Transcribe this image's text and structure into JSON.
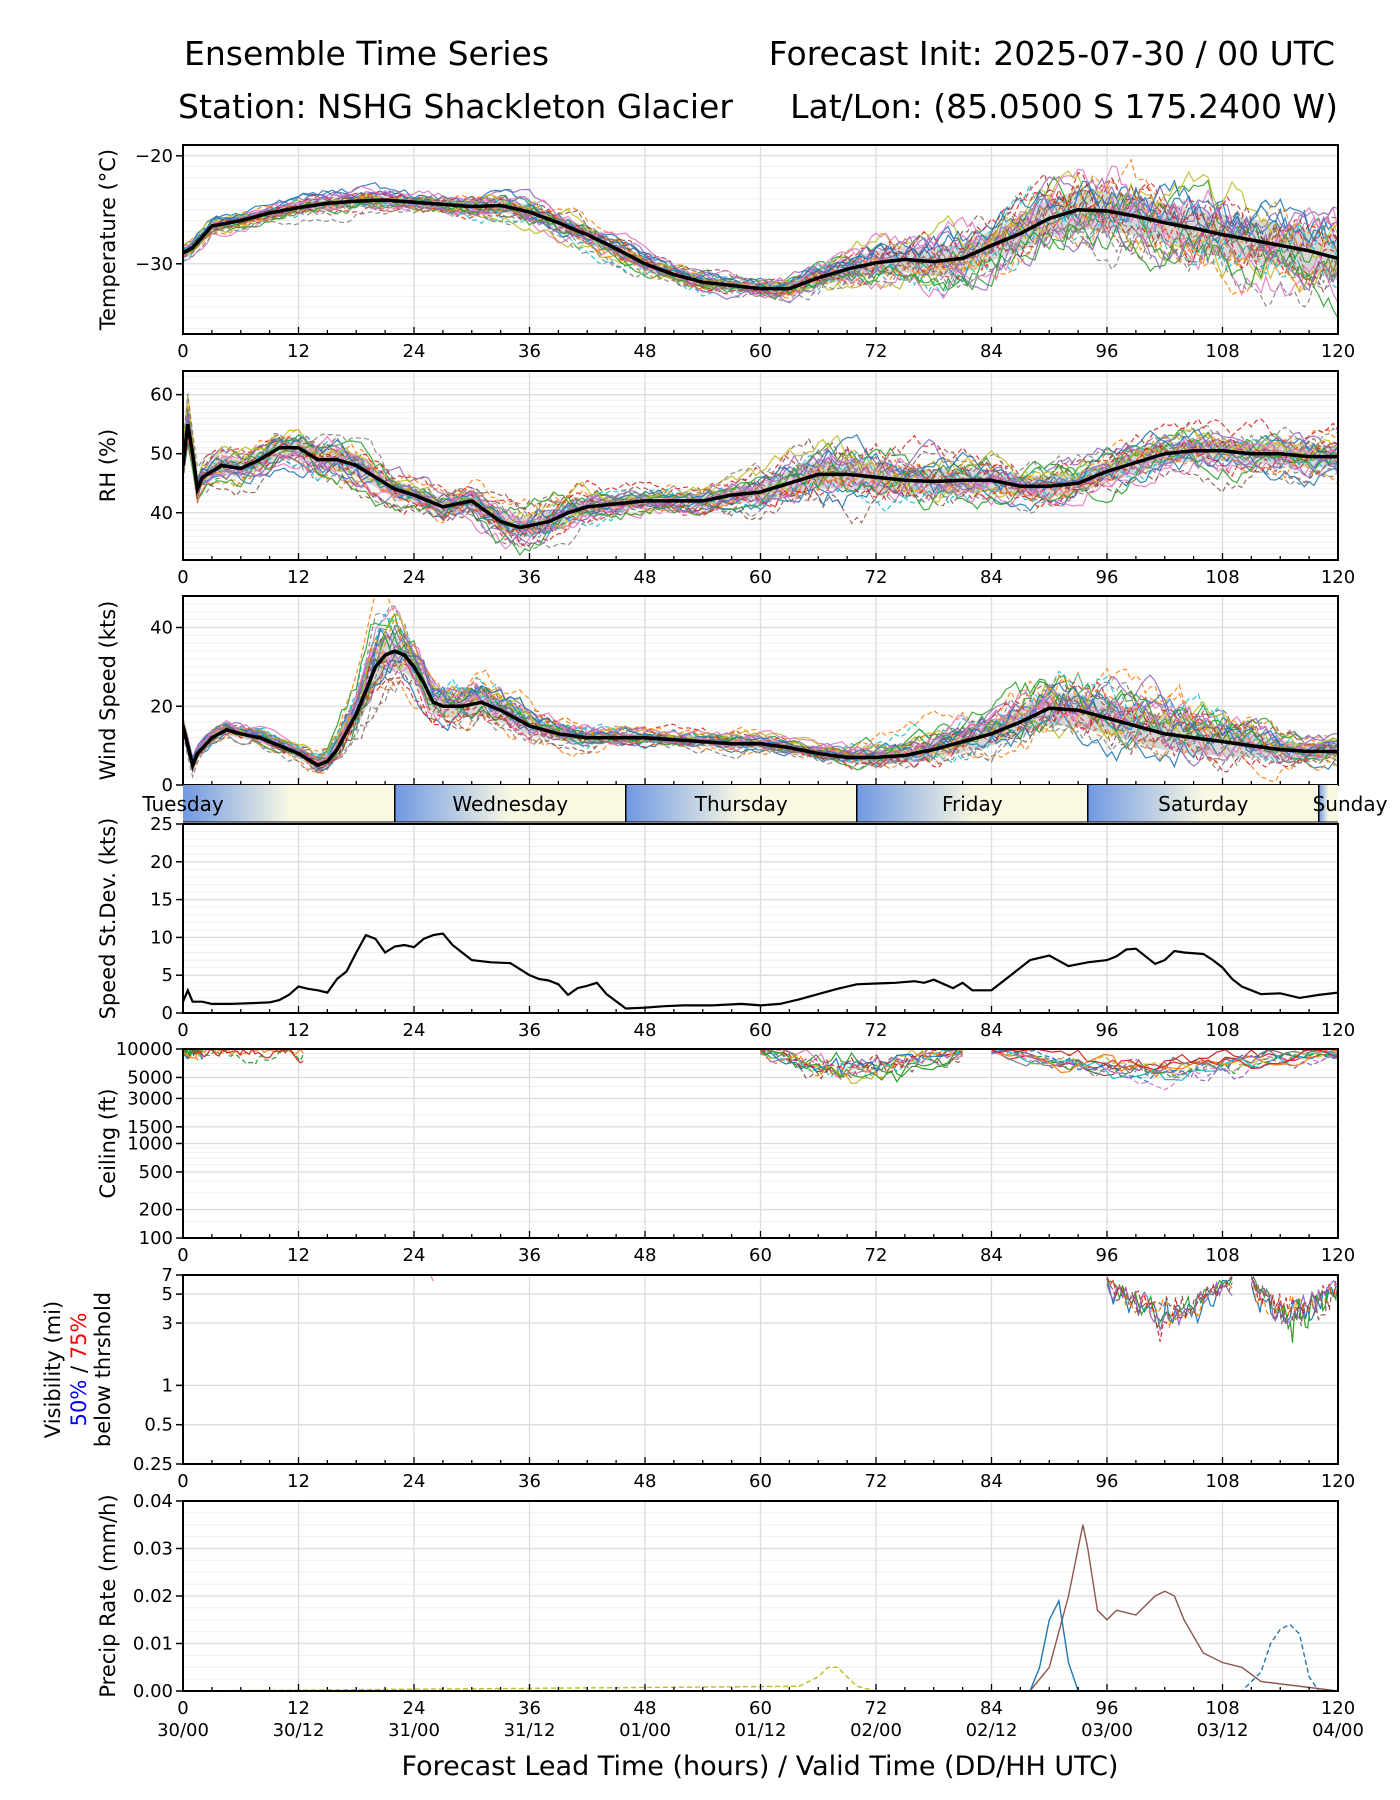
{
  "header": {
    "title_left": "Ensemble Time Series",
    "title_right": "Forecast Init: 2025-07-30 / 00 UTC",
    "station": "Station: NSHG Shackleton Glacier",
    "latlon": "Lat/Lon: (85.0500 S 175.2400 W)"
  },
  "chart_data": [
    {
      "type": "line",
      "ylabel": "Temperature (°C)",
      "ylim": [
        -36.5,
        -19
      ],
      "yticks": [
        -20,
        -30
      ],
      "ytick_labels": [
        "−20",
        "−30"
      ],
      "x_range": [
        0,
        120
      ],
      "mean_series": {
        "name": "ensemble mean",
        "x": [
          0,
          1,
          3,
          6,
          9,
          12,
          15,
          18,
          21,
          24,
          27,
          30,
          33,
          36,
          39,
          42,
          45,
          48,
          51,
          54,
          57,
          60,
          63,
          66,
          69,
          72,
          75,
          78,
          81,
          84,
          87,
          90,
          93,
          96,
          99,
          102,
          105,
          108,
          111,
          114,
          117,
          120
        ],
        "y": [
          -29,
          -28.5,
          -26.5,
          -26,
          -25.3,
          -24.8,
          -24.4,
          -24.2,
          -24.1,
          -24.3,
          -24.5,
          -24.7,
          -24.6,
          -25.2,
          -26.2,
          -27.3,
          -28.6,
          -30,
          -31,
          -31.7,
          -32,
          -32.3,
          -32.3,
          -31.3,
          -30.5,
          -29.9,
          -29.6,
          -29.8,
          -29.5,
          -28.3,
          -27.2,
          -25.8,
          -25,
          -25.1,
          -25.6,
          -26.2,
          -26.7,
          -27.3,
          -27.8,
          -28.3,
          -28.8,
          -29.5
        ]
      },
      "spread_ensemble": {
        "members": 28,
        "spread": [
          0.8,
          0.8,
          0.7,
          0.7,
          0.6,
          0.8,
          0.9,
          0.9,
          0.8,
          0.8,
          0.8,
          0.9,
          1.0,
          1.1,
          1.2,
          1.2,
          1.1,
          1.0,
          0.9,
          0.9,
          0.8,
          0.8,
          1.0,
          1.3,
          1.6,
          1.8,
          2.0,
          2.2,
          2.3,
          2.4,
          2.7,
          3.0,
          3.0,
          3.0,
          3.0,
          3.0,
          3.1,
          3.2,
          3.3,
          3.3,
          3.3,
          3.3
        ]
      }
    },
    {
      "type": "line",
      "ylabel": "RH (%)",
      "ylim": [
        32,
        64
      ],
      "yticks": [
        40,
        50,
        60
      ],
      "ytick_labels": [
        "40",
        "50",
        "60"
      ],
      "x_range": [
        0,
        120
      ],
      "mean_series": {
        "name": "ensemble mean",
        "x": [
          0,
          0.5,
          1,
          1.5,
          2,
          4,
          6,
          8,
          10,
          12,
          14,
          16,
          18,
          20,
          22,
          24,
          27,
          30,
          33,
          35,
          36,
          38,
          40,
          42,
          45,
          48,
          51,
          54,
          57,
          60,
          63,
          66,
          69,
          72,
          75,
          78,
          81,
          84,
          87,
          90,
          93,
          96,
          99,
          102,
          105,
          108,
          111,
          114,
          117,
          120
        ],
        "y": [
          48,
          55,
          50,
          44,
          46,
          48,
          47.5,
          49,
          51,
          51,
          49,
          49,
          48,
          46,
          44,
          43,
          41,
          42,
          38.5,
          37.5,
          37.8,
          38.5,
          40,
          41,
          41.5,
          42,
          42,
          42,
          43,
          43.5,
          45,
          46.5,
          46.5,
          46,
          45.5,
          45.3,
          45.5,
          45.5,
          44.5,
          44.5,
          45,
          47,
          48.5,
          50,
          50.5,
          50.5,
          50,
          50,
          49.5,
          49.5
        ]
      },
      "spread_ensemble": {
        "members": 28,
        "spread": [
          3,
          4,
          3,
          2.5,
          2.5,
          2.5,
          2.5,
          2.5,
          2.5,
          2.5,
          2.8,
          3,
          3,
          2.8,
          2.5,
          2.3,
          2.3,
          2.5,
          2.8,
          3,
          3,
          3,
          2.8,
          2.5,
          2,
          1.8,
          1.8,
          2,
          2.3,
          2.8,
          3.5,
          4,
          4,
          4,
          3.8,
          3.5,
          3.2,
          3,
          3,
          3,
          3,
          3,
          3,
          3,
          3,
          3,
          3,
          3,
          3,
          3
        ]
      }
    },
    {
      "type": "line",
      "ylabel": "Wind Speed (kts)",
      "ylim": [
        0,
        48
      ],
      "yticks": [
        0,
        20,
        40
      ],
      "ytick_labels": [
        "0",
        "20",
        "40"
      ],
      "x_range": [
        0,
        120
      ],
      "mean_series": {
        "name": "ensemble mean",
        "x": [
          0,
          0.5,
          1,
          1.5,
          3,
          4.5,
          6,
          8,
          10,
          12,
          14,
          15,
          16,
          18,
          19,
          20,
          21,
          22,
          23,
          24,
          25,
          26,
          27,
          29,
          31,
          33,
          36,
          39,
          42,
          45,
          48,
          51,
          54,
          57,
          60,
          63,
          66,
          69,
          72,
          75,
          78,
          81,
          84,
          87,
          90,
          93,
          96,
          99,
          102,
          105,
          108,
          111,
          114,
          117,
          120
        ],
        "y": [
          15,
          10,
          5,
          8,
          12,
          14,
          13,
          12,
          10,
          8,
          5,
          6,
          9,
          18,
          24,
          30,
          33,
          34,
          33,
          30,
          26,
          21,
          20,
          20,
          21,
          19,
          15,
          13,
          12,
          12,
          12,
          11.5,
          11,
          10.5,
          10.5,
          9.5,
          8,
          7,
          7,
          7.5,
          9,
          11,
          13,
          16,
          19.5,
          19,
          17,
          15,
          13,
          12,
          11,
          10,
          9,
          8.5,
          8.5
        ]
      },
      "spread_ensemble": {
        "members": 28,
        "spread": [
          2,
          2,
          2,
          2,
          2,
          2,
          2,
          2,
          2,
          2,
          3,
          3,
          4,
          6,
          8,
          9,
          9,
          8,
          7,
          6,
          6,
          5,
          5,
          5,
          5,
          5,
          4,
          3,
          2.5,
          2,
          2,
          2,
          2,
          2,
          2,
          2,
          2,
          2.5,
          3,
          3.5,
          4,
          4.5,
          5,
          6,
          7,
          7,
          7,
          7,
          7,
          7,
          6,
          5,
          4,
          3,
          3
        ]
      }
    },
    {
      "type": "line",
      "ylabel": "Speed St.Dev. (kts)",
      "ylim": [
        0,
        25
      ],
      "yticks": [
        0,
        5,
        10,
        15,
        20,
        25
      ],
      "ytick_labels": [
        "0",
        "5",
        "10",
        "15",
        "20",
        "25"
      ],
      "x_range": [
        0,
        120
      ],
      "series": [
        {
          "name": "",
          "x": [
            0,
            0.5,
            1,
            2,
            3,
            5,
            7,
            9,
            10,
            11,
            12,
            13,
            14,
            15,
            16,
            17,
            18,
            19,
            20,
            21,
            22,
            23,
            24,
            25,
            26,
            27,
            28,
            30,
            32,
            34,
            36,
            37,
            38,
            39,
            40,
            41,
            42,
            43,
            44,
            46,
            48,
            50,
            52,
            55,
            58,
            60,
            62,
            64,
            66,
            68,
            70,
            72,
            74,
            76,
            77,
            78,
            80,
            81,
            82,
            84,
            86,
            88,
            90,
            92,
            94,
            96,
            97,
            98,
            99,
            100,
            101,
            102,
            103,
            104,
            106,
            107,
            108,
            109,
            110,
            112,
            114,
            116,
            118,
            120
          ],
          "y": [
            1.5,
            3,
            1.5,
            1.5,
            1.2,
            1.2,
            1.3,
            1.4,
            1.7,
            2.4,
            3.5,
            3.2,
            3.0,
            2.7,
            4.5,
            5.5,
            8,
            10.3,
            9.8,
            8.0,
            8.8,
            9.0,
            8.7,
            9.8,
            10.3,
            10.5,
            9.0,
            7.0,
            6.7,
            6.6,
            5.0,
            4.5,
            4.3,
            3.8,
            2.4,
            3.3,
            3.6,
            4.0,
            2.5,
            0.6,
            0.7,
            0.9,
            1.0,
            1.0,
            1.2,
            1.0,
            1.2,
            1.8,
            2.5,
            3.2,
            3.8,
            3.9,
            4.0,
            4.2,
            4.0,
            4.4,
            3.3,
            4.0,
            3.0,
            3.0,
            5.0,
            7.0,
            7.6,
            6.2,
            6.7,
            7.0,
            7.5,
            8.4,
            8.5,
            7.5,
            6.5,
            7.0,
            8.2,
            8.0,
            7.8,
            7.0,
            6.0,
            4.5,
            3.5,
            2.5,
            2.6,
            2.0,
            2.4,
            2.7
          ]
        }
      ]
    },
    {
      "type": "line",
      "ylabel": "Ceiling (ft)",
      "scale": "log",
      "ylim": [
        100,
        10000
      ],
      "yticks": [
        100,
        200,
        500,
        1000,
        1500,
        3000,
        5000,
        10000
      ],
      "ytick_labels": [
        "100",
        "200",
        "500",
        "1000",
        "1500",
        "3000",
        "5000",
        "10000"
      ],
      "x_range": [
        0,
        120
      ]
    },
    {
      "type": "line",
      "ylabel": "Visibility (mi)",
      "ylabel_2a": "50%",
      "ylabel_2b": "75%",
      "ylabel_3": "below thrshold",
      "ylabel_color_a": "#0000ff",
      "ylabel_color_b": "#ff0000",
      "scale": "log",
      "ylim": [
        0.25,
        7
      ],
      "yticks": [
        0.25,
        0.5,
        1,
        3,
        5,
        7
      ],
      "ytick_labels": [
        "0.25",
        "0.5",
        "1",
        "3",
        "5",
        "7"
      ],
      "x_range": [
        0,
        120
      ]
    },
    {
      "type": "line",
      "ylabel": "Precip Rate (mm/h)",
      "ylim": [
        0,
        0.04
      ],
      "yticks": [
        0,
        0.01,
        0.02,
        0.03,
        0.04
      ],
      "ytick_labels": [
        "0.00",
        "0.01",
        "0.02",
        "0.03",
        "0.04"
      ],
      "x_range": [
        0,
        120
      ],
      "series": [
        {
          "name": "",
          "color": "#8c564b",
          "x": [
            0,
            88,
            90,
            92,
            93,
            93.5,
            94,
            95,
            96,
            97,
            99,
            100,
            101,
            102,
            103,
            104,
            106,
            108,
            110,
            112,
            120
          ],
          "y": [
            0,
            0,
            0.005,
            0.02,
            0.03,
            0.035,
            0.03,
            0.017,
            0.015,
            0.017,
            0.016,
            0.018,
            0.02,
            0.021,
            0.02,
            0.015,
            0.008,
            0.006,
            0.005,
            0.002,
            0
          ]
        },
        {
          "name": "",
          "color": "#1f77b4",
          "x": [
            0,
            88,
            89,
            90,
            91,
            92,
            93,
            96,
            120
          ],
          "y": [
            0,
            0,
            0.005,
            0.015,
            0.019,
            0.006,
            0,
            0,
            0
          ]
        },
        {
          "name": "",
          "color": "#1f77b4",
          "x": [
            0,
            110,
            112,
            113,
            114,
            115,
            116,
            117,
            118,
            120
          ],
          "y": [
            0,
            0,
            0.004,
            0.01,
            0.013,
            0.014,
            0.012,
            0.003,
            0,
            0
          ]
        },
        {
          "name": "",
          "color": "#bcbd22",
          "x": [
            0,
            64,
            66,
            67,
            68,
            69,
            70,
            72,
            120
          ],
          "y": [
            0,
            0.001,
            0.003,
            0.005,
            0.005,
            0.003,
            0.001,
            0.0,
            0
          ]
        }
      ]
    }
  ],
  "x_axis": {
    "ticks": [
      0,
      12,
      24,
      36,
      48,
      60,
      72,
      84,
      96,
      108,
      120
    ],
    "tick_labels": [
      "0",
      "12",
      "24",
      "36",
      "48",
      "60",
      "72",
      "84",
      "96",
      "108",
      "120"
    ],
    "valid_labels": [
      "30/00",
      "30/12",
      "31/00",
      "31/12",
      "01/00",
      "01/12",
      "02/00",
      "02/12",
      "03/00",
      "03/12",
      "04/00"
    ],
    "xlabel": "Forecast Lead Time (hours) / Valid Time (DD/HH UTC)"
  },
  "day_bar": {
    "days": [
      "Tuesday",
      "Wednesday",
      "Thursday",
      "Friday",
      "Saturday",
      "Sunday"
    ],
    "blue": "#6f98e3",
    "cream": "#f8f8e3"
  },
  "colors": {
    "mean": "#000000",
    "spread": "#c8c8c8",
    "members": [
      "#1f77b4",
      "#ff7f0e",
      "#2ca02c",
      "#d62728",
      "#9467bd",
      "#8c564b",
      "#e377c2",
      "#7f7f7f",
      "#bcbd22",
      "#17becf"
    ]
  }
}
